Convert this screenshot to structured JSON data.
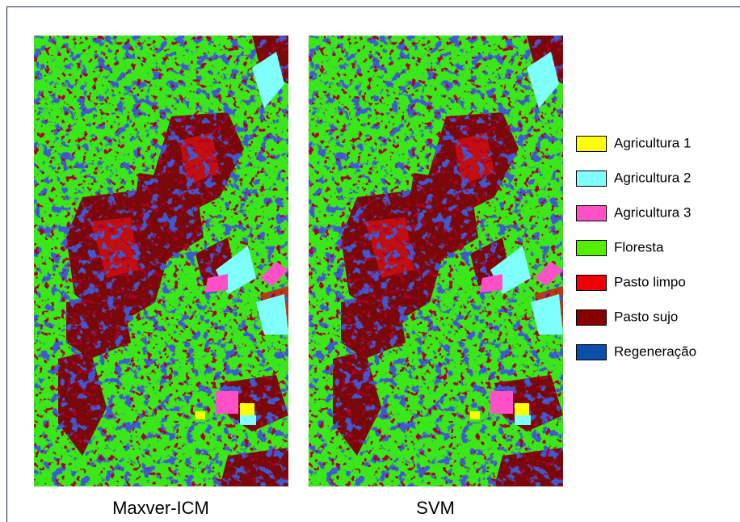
{
  "maps": [
    {
      "caption": "Maxver-ICM"
    },
    {
      "caption": "SVM"
    }
  ],
  "legend": [
    {
      "label": "Agricultura 1",
      "color": "#ffff00"
    },
    {
      "label": "Agricultura 2",
      "color": "#80ffff"
    },
    {
      "label": "Agricultura 3",
      "color": "#ff50c8"
    },
    {
      "label": "Floresta",
      "color": "#55ee00"
    },
    {
      "label": "Pasto limpo",
      "color": "#ee0000"
    },
    {
      "label": "Pasto sujo",
      "color": "#880000"
    },
    {
      "label": "Regeneração",
      "color": "#0a50a8"
    }
  ]
}
